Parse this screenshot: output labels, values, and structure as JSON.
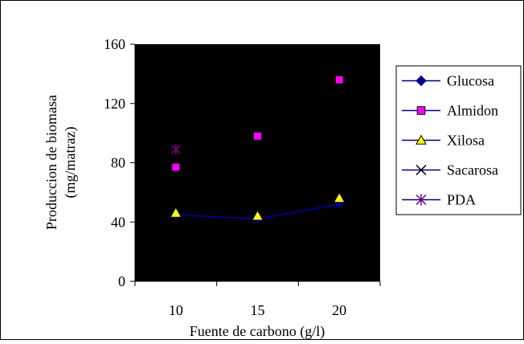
{
  "chart_data": {
    "type": "scatter",
    "title": "",
    "xlabel": "Fuente de carbono (g/l)",
    "ylabel_line1": "Produccion de biomasa",
    "ylabel_line2": "(mg/matraz)",
    "x_ticks": [
      "10",
      "15",
      "20"
    ],
    "y_ticks": [
      "0",
      "40",
      "80",
      "120",
      "160"
    ],
    "xlim": [
      7.5,
      22.5
    ],
    "ylim": [
      0,
      160
    ],
    "grid": false,
    "legend_position": "right",
    "plot_background": "#000000",
    "series": [
      {
        "name": "Glucosa",
        "color": "#000080",
        "marker": "diamond",
        "line": true,
        "points": [
          [
            10,
            45
          ],
          [
            15,
            42
          ],
          [
            20,
            52
          ]
        ]
      },
      {
        "name": "Almidon",
        "color": "#ff00ff",
        "marker": "square",
        "line": false,
        "points": [
          [
            10,
            77
          ],
          [
            15,
            98
          ],
          [
            20,
            136
          ]
        ]
      },
      {
        "name": "Xilosa",
        "color": "#ffff00",
        "marker": "triangle",
        "line": false,
        "points": [
          [
            10,
            46
          ],
          [
            15,
            44
          ],
          [
            20,
            56
          ]
        ]
      },
      {
        "name": "Sacarosa",
        "color": "#000000",
        "marker": "x",
        "line": false,
        "points": []
      },
      {
        "name": "PDA",
        "color": "#800080",
        "marker": "asterisk",
        "line": false,
        "points": [
          [
            10,
            89
          ]
        ]
      }
    ]
  }
}
